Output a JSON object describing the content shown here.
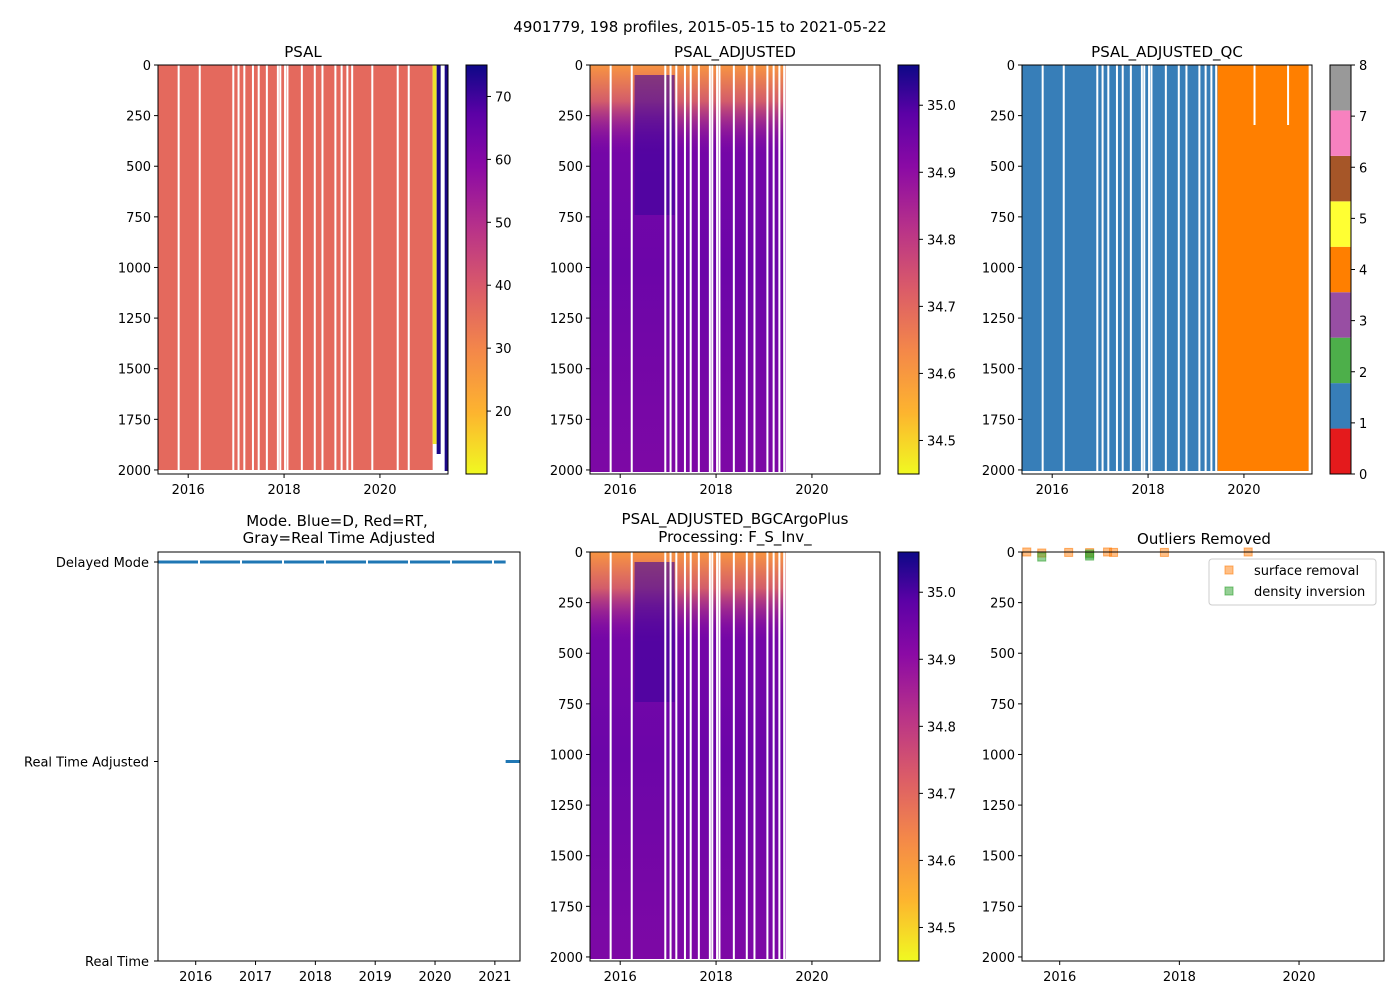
{
  "suptitle": "4901779, 198 profiles, 2015-05-15 to 2021-05-22",
  "colors": {
    "psal_fill": "#e4695d",
    "psal_high": "#1a0786",
    "psal_low": "#f0e32c",
    "qc_blue": "#377eb8",
    "qc_orange": "#ff7f00",
    "mode_blue": "#1f77b4",
    "surface_removal": "#ff7f0e",
    "density_inversion": "#2ca02c"
  },
  "chart_data": [
    {
      "id": "psal",
      "type": "heatmap",
      "title": "PSAL",
      "x_range": [
        2015.37,
        2021.42
      ],
      "x_ticks": [
        "2016",
        "2018",
        "2020"
      ],
      "y_range": [
        2020,
        0
      ],
      "y_ticks": [
        "0",
        "250",
        "500",
        "750",
        "1000",
        "1250",
        "1500",
        "1750",
        "2000"
      ],
      "colorbar": {
        "range": [
          10,
          75
        ],
        "cmap": "plasma",
        "ticks": [
          "20",
          "30",
          "40",
          "50",
          "60",
          "70"
        ]
      },
      "description_values": {
        "bulk_value": 35,
        "late_profiles_value": 75,
        "data_end_year": 2021.1
      }
    },
    {
      "id": "psal_adjusted",
      "type": "heatmap",
      "title": "PSAL_ADJUSTED",
      "x_range": [
        2015.37,
        2021.42
      ],
      "x_ticks": [
        "2016",
        "2018",
        "2020"
      ],
      "y_range": [
        2020,
        0
      ],
      "y_ticks": [
        "0",
        "250",
        "500",
        "750",
        "1000",
        "1250",
        "1500",
        "1750",
        "2000"
      ],
      "colorbar": {
        "range": [
          34.45,
          35.06
        ],
        "cmap": "plasma",
        "ticks": [
          "34.5",
          "34.6",
          "34.7",
          "34.8",
          "34.9",
          "35.0"
        ]
      },
      "description_values": {
        "data_end_year": 2019.45
      }
    },
    {
      "id": "psal_adjusted_qc",
      "type": "heatmap",
      "title": "PSAL_ADJUSTED_QC",
      "x_range": [
        2015.37,
        2021.42
      ],
      "x_ticks": [
        "2016",
        "2018",
        "2020"
      ],
      "y_range": [
        2020,
        0
      ],
      "y_ticks": [
        "0",
        "250",
        "500",
        "750",
        "1000",
        "1250",
        "1500",
        "1750",
        "2000"
      ],
      "colorbar": {
        "range": [
          0,
          8
        ],
        "ticks": [
          "0",
          "1",
          "2",
          "3",
          "4",
          "5",
          "6",
          "7",
          "8"
        ],
        "segments": [
          "#e41a1c",
          "#377eb8",
          "#4daf4a",
          "#984ea3",
          "#ff7f00",
          "#ffff33",
          "#a65628",
          "#f781bf",
          "#999999"
        ]
      },
      "description_values": {
        "qc1_until_year": 2019.45,
        "qc4_until_year": 2021.35
      }
    },
    {
      "id": "mode",
      "type": "scatter",
      "title_line1": "Mode. Blue=D, Red=RT,",
      "title_line2": "Gray=Real Time Adjusted",
      "x_range": [
        2015.37,
        2021.42
      ],
      "x_ticks": [
        "2016",
        "2017",
        "2018",
        "2019",
        "2020",
        "2021"
      ],
      "y_categories": [
        "Delayed Mode",
        "Real Time Adjusted",
        "Real Time"
      ],
      "series": [
        {
          "name": "Delayed Mode",
          "x_start": 2015.37,
          "x_end": 2021.18
        },
        {
          "name": "Real Time Adjusted",
          "x_start": 2021.18,
          "x_end": 2021.42
        }
      ]
    },
    {
      "id": "bgc",
      "type": "heatmap",
      "title_line1": "PSAL_ADJUSTED_BGCArgoPlus",
      "title_line2": "Processing: F_S_Inv_",
      "x_range": [
        2015.37,
        2021.42
      ],
      "x_ticks": [
        "2016",
        "2018",
        "2020"
      ],
      "y_range": [
        2020,
        0
      ],
      "y_ticks": [
        "0",
        "250",
        "500",
        "750",
        "1000",
        "1250",
        "1500",
        "1750",
        "2000"
      ],
      "colorbar": {
        "range": [
          34.45,
          35.06
        ],
        "cmap": "plasma",
        "ticks": [
          "34.5",
          "34.6",
          "34.7",
          "34.8",
          "34.9",
          "35.0"
        ]
      },
      "description_values": {
        "data_end_year": 2019.45
      }
    },
    {
      "id": "outliers",
      "type": "scatter",
      "title": "Outliers Removed",
      "x_range": [
        2015.37,
        2021.42
      ],
      "x_ticks": [
        "2016",
        "2018",
        "2020"
      ],
      "y_range": [
        2020,
        0
      ],
      "y_ticks": [
        "0",
        "250",
        "500",
        "750",
        "1000",
        "1250",
        "1500",
        "1750",
        "2000"
      ],
      "legend_position": "top-right",
      "series": [
        {
          "name": "surface removal",
          "points": [
            [
              2015.45,
              0
            ],
            [
              2015.7,
              5
            ],
            [
              2016.15,
              2
            ],
            [
              2016.5,
              3
            ],
            [
              2016.8,
              0
            ],
            [
              2016.9,
              2
            ],
            [
              2017.75,
              2
            ],
            [
              2019.15,
              0
            ]
          ]
        },
        {
          "name": "density inversion",
          "points": [
            [
              2015.7,
              25
            ],
            [
              2016.5,
              20
            ],
            [
              2016.5,
              10
            ]
          ]
        }
      ]
    }
  ]
}
